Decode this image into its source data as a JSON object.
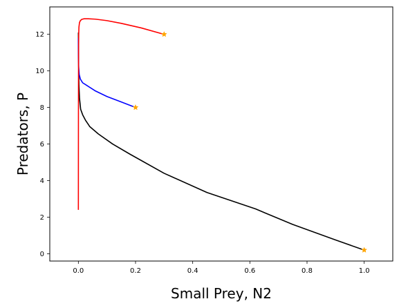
{
  "chart_data": {
    "type": "line",
    "title": "",
    "xlabel": "Small Prey, N2",
    "ylabel": "Predators, P",
    "xlim": [
      -0.1,
      1.1
    ],
    "ylim": [
      -0.4,
      13.5
    ],
    "xticks": [
      0.0,
      0.2,
      0.4,
      0.6,
      0.8,
      1.0
    ],
    "xtick_labels": [
      "0.0",
      "0.2",
      "0.4",
      "0.6",
      "0.8",
      "1.0"
    ],
    "yticks": [
      0,
      2,
      4,
      6,
      8,
      10,
      12
    ],
    "ytick_labels": [
      "0",
      "2",
      "4",
      "6",
      "8",
      "10",
      "12"
    ],
    "grid": false,
    "legend": "none",
    "series": [
      {
        "color": "#000000",
        "x": [
          1.0,
          0.9,
          0.75,
          0.62,
          0.45,
          0.3,
          0.18,
          0.12,
          0.07,
          0.04,
          0.025,
          0.015,
          0.008,
          0.004,
          0.002,
          0.001,
          0.0005,
          0.0002,
          0.0001
        ],
        "y": [
          0.2,
          0.75,
          1.6,
          2.45,
          3.35,
          4.4,
          5.45,
          6.0,
          6.55,
          6.95,
          7.3,
          7.6,
          7.9,
          8.5,
          9.2,
          10.2,
          11.0,
          11.8,
          12.1
        ]
      },
      {
        "color": "#0000ff",
        "x": [
          0.2,
          0.15,
          0.1,
          0.06,
          0.03,
          0.015,
          0.007,
          0.003,
          0.001,
          0.0003,
          0.0001,
          0.0
        ],
        "y": [
          8.0,
          8.3,
          8.6,
          8.9,
          9.2,
          9.35,
          9.55,
          9.8,
          10.2,
          10.8,
          11.4,
          11.8
        ]
      },
      {
        "color": "#ff0000",
        "x": [
          0.3,
          0.22,
          0.15,
          0.1,
          0.06,
          0.035,
          0.02,
          0.012,
          0.007,
          0.004,
          0.002,
          0.0012,
          0.0007,
          0.0004,
          0.0002,
          0.0001,
          0.0
        ],
        "y": [
          12.0,
          12.35,
          12.6,
          12.75,
          12.83,
          12.85,
          12.85,
          12.82,
          12.75,
          12.65,
          12.4,
          12.0,
          11.2,
          9.5,
          7.0,
          4.5,
          2.4
        ]
      }
    ],
    "start_markers": {
      "color": "#ffa500",
      "points": [
        [
          1.0,
          0.2
        ],
        [
          0.2,
          8.0
        ],
        [
          0.3,
          12.0
        ]
      ]
    }
  }
}
